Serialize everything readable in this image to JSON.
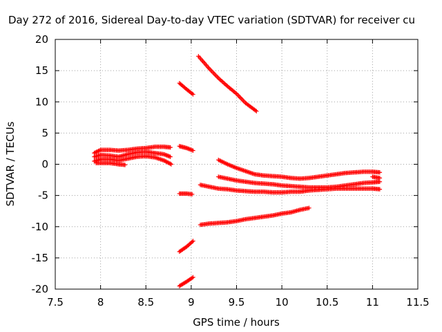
{
  "chart_data": {
    "type": "scatter",
    "title": "Day 272 of 2016, Sidereal Day-to-day VTEC variation (SDTVAR) for receiver cu",
    "xlabel": "GPS time / hours",
    "ylabel": "SDTVAR / TECUs",
    "xlim": [
      7.5,
      11.5
    ],
    "ylim": [
      -20,
      20
    ],
    "xticks": [
      "7.5",
      "8",
      "8.5",
      "9",
      "9.5",
      "10",
      "10.5",
      "11",
      "11.5"
    ],
    "yticks": [
      "20",
      "15",
      "10",
      "5",
      "0",
      "-5",
      "-10",
      "-15",
      "-20"
    ],
    "grid": true,
    "marker": "+",
    "color": "#ff0000",
    "tracks": [
      [
        [
          7.93,
          1.8
        ],
        [
          8.0,
          2.3
        ],
        [
          8.1,
          2.3
        ],
        [
          8.2,
          2.2
        ],
        [
          8.3,
          2.3
        ],
        [
          8.4,
          2.5
        ],
        [
          8.5,
          2.6
        ],
        [
          8.6,
          2.8
        ],
        [
          8.7,
          2.8
        ],
        [
          8.77,
          2.7
        ]
      ],
      [
        [
          7.93,
          1.2
        ],
        [
          8.0,
          1.5
        ],
        [
          8.1,
          1.4
        ],
        [
          8.2,
          1.2
        ],
        [
          8.3,
          1.6
        ],
        [
          8.4,
          1.9
        ],
        [
          8.5,
          2.0
        ],
        [
          8.6,
          1.8
        ],
        [
          8.7,
          1.6
        ],
        [
          8.77,
          1.2
        ]
      ],
      [
        [
          7.93,
          0.5
        ],
        [
          8.0,
          0.8
        ],
        [
          8.1,
          0.8
        ],
        [
          8.2,
          0.6
        ],
        [
          8.3,
          0.9
        ],
        [
          8.4,
          1.2
        ],
        [
          8.5,
          1.3
        ],
        [
          8.6,
          1.1
        ],
        [
          8.7,
          0.6
        ],
        [
          8.78,
          0.0
        ]
      ],
      [
        [
          7.95,
          0.2
        ],
        [
          8.1,
          0.2
        ],
        [
          8.2,
          0.0
        ],
        [
          8.27,
          -0.1
        ]
      ],
      [
        [
          8.87,
          13.0
        ],
        [
          8.95,
          12.0
        ],
        [
          9.02,
          11.2
        ]
      ],
      [
        [
          8.87,
          2.9
        ],
        [
          8.95,
          2.6
        ],
        [
          9.02,
          2.2
        ]
      ],
      [
        [
          8.87,
          -4.7
        ],
        [
          8.95,
          -4.7
        ],
        [
          9.01,
          -4.8
        ]
      ],
      [
        [
          8.87,
          -14.0
        ],
        [
          8.95,
          -13.2
        ],
        [
          9.02,
          -12.3
        ]
      ],
      [
        [
          8.87,
          -19.5
        ],
        [
          8.95,
          -18.8
        ],
        [
          9.02,
          -18.1
        ]
      ],
      [
        [
          9.08,
          17.3
        ],
        [
          9.2,
          15.3
        ],
        [
          9.3,
          13.8
        ],
        [
          9.4,
          12.5
        ],
        [
          9.5,
          11.3
        ],
        [
          9.6,
          9.8
        ],
        [
          9.72,
          8.5
        ]
      ],
      [
        [
          9.3,
          0.7
        ],
        [
          9.4,
          0.0
        ],
        [
          9.5,
          -0.6
        ],
        [
          9.6,
          -1.1
        ],
        [
          9.7,
          -1.6
        ],
        [
          9.8,
          -1.8
        ],
        [
          9.9,
          -1.9
        ],
        [
          10.0,
          -2.0
        ],
        [
          10.1,
          -2.2
        ],
        [
          10.2,
          -2.3
        ],
        [
          10.3,
          -2.2
        ],
        [
          10.4,
          -2.0
        ],
        [
          10.5,
          -1.8
        ],
        [
          10.6,
          -1.6
        ],
        [
          10.7,
          -1.4
        ],
        [
          10.8,
          -1.3
        ],
        [
          10.9,
          -1.2
        ],
        [
          11.0,
          -1.2
        ],
        [
          11.08,
          -1.3
        ]
      ],
      [
        [
          11.0,
          -2.0
        ],
        [
          11.08,
          -2.2
        ]
      ],
      [
        [
          9.3,
          -2.0
        ],
        [
          9.4,
          -2.3
        ],
        [
          9.5,
          -2.6
        ],
        [
          9.6,
          -2.8
        ],
        [
          9.7,
          -3.0
        ],
        [
          9.8,
          -3.1
        ],
        [
          9.9,
          -3.2
        ],
        [
          10.0,
          -3.4
        ],
        [
          10.1,
          -3.5
        ],
        [
          10.2,
          -3.6
        ],
        [
          10.3,
          -3.7
        ],
        [
          10.4,
          -3.7
        ],
        [
          10.5,
          -3.7
        ],
        [
          10.6,
          -3.6
        ],
        [
          10.7,
          -3.4
        ],
        [
          10.8,
          -3.2
        ],
        [
          10.9,
          -3.0
        ],
        [
          11.0,
          -2.9
        ],
        [
          11.08,
          -2.8
        ]
      ],
      [
        [
          9.1,
          -3.3
        ],
        [
          9.2,
          -3.6
        ],
        [
          9.3,
          -3.9
        ],
        [
          9.4,
          -4.0
        ],
        [
          9.5,
          -4.2
        ],
        [
          9.6,
          -4.3
        ],
        [
          9.7,
          -4.4
        ],
        [
          9.8,
          -4.4
        ],
        [
          9.9,
          -4.5
        ],
        [
          10.0,
          -4.5
        ],
        [
          10.1,
          -4.4
        ],
        [
          10.2,
          -4.4
        ],
        [
          10.3,
          -4.2
        ],
        [
          10.4,
          -4.1
        ],
        [
          10.5,
          -4.0
        ],
        [
          10.6,
          -3.9
        ],
        [
          10.7,
          -3.9
        ],
        [
          10.8,
          -3.9
        ],
        [
          10.9,
          -3.9
        ],
        [
          11.0,
          -3.9
        ],
        [
          11.08,
          -4.0
        ]
      ],
      [
        [
          9.1,
          -9.7
        ],
        [
          9.2,
          -9.5
        ],
        [
          9.3,
          -9.4
        ],
        [
          9.4,
          -9.3
        ],
        [
          9.5,
          -9.1
        ],
        [
          9.6,
          -8.8
        ],
        [
          9.7,
          -8.6
        ],
        [
          9.8,
          -8.4
        ],
        [
          9.9,
          -8.2
        ],
        [
          10.0,
          -7.9
        ],
        [
          10.1,
          -7.7
        ],
        [
          10.2,
          -7.3
        ],
        [
          10.3,
          -7.0
        ]
      ]
    ]
  }
}
